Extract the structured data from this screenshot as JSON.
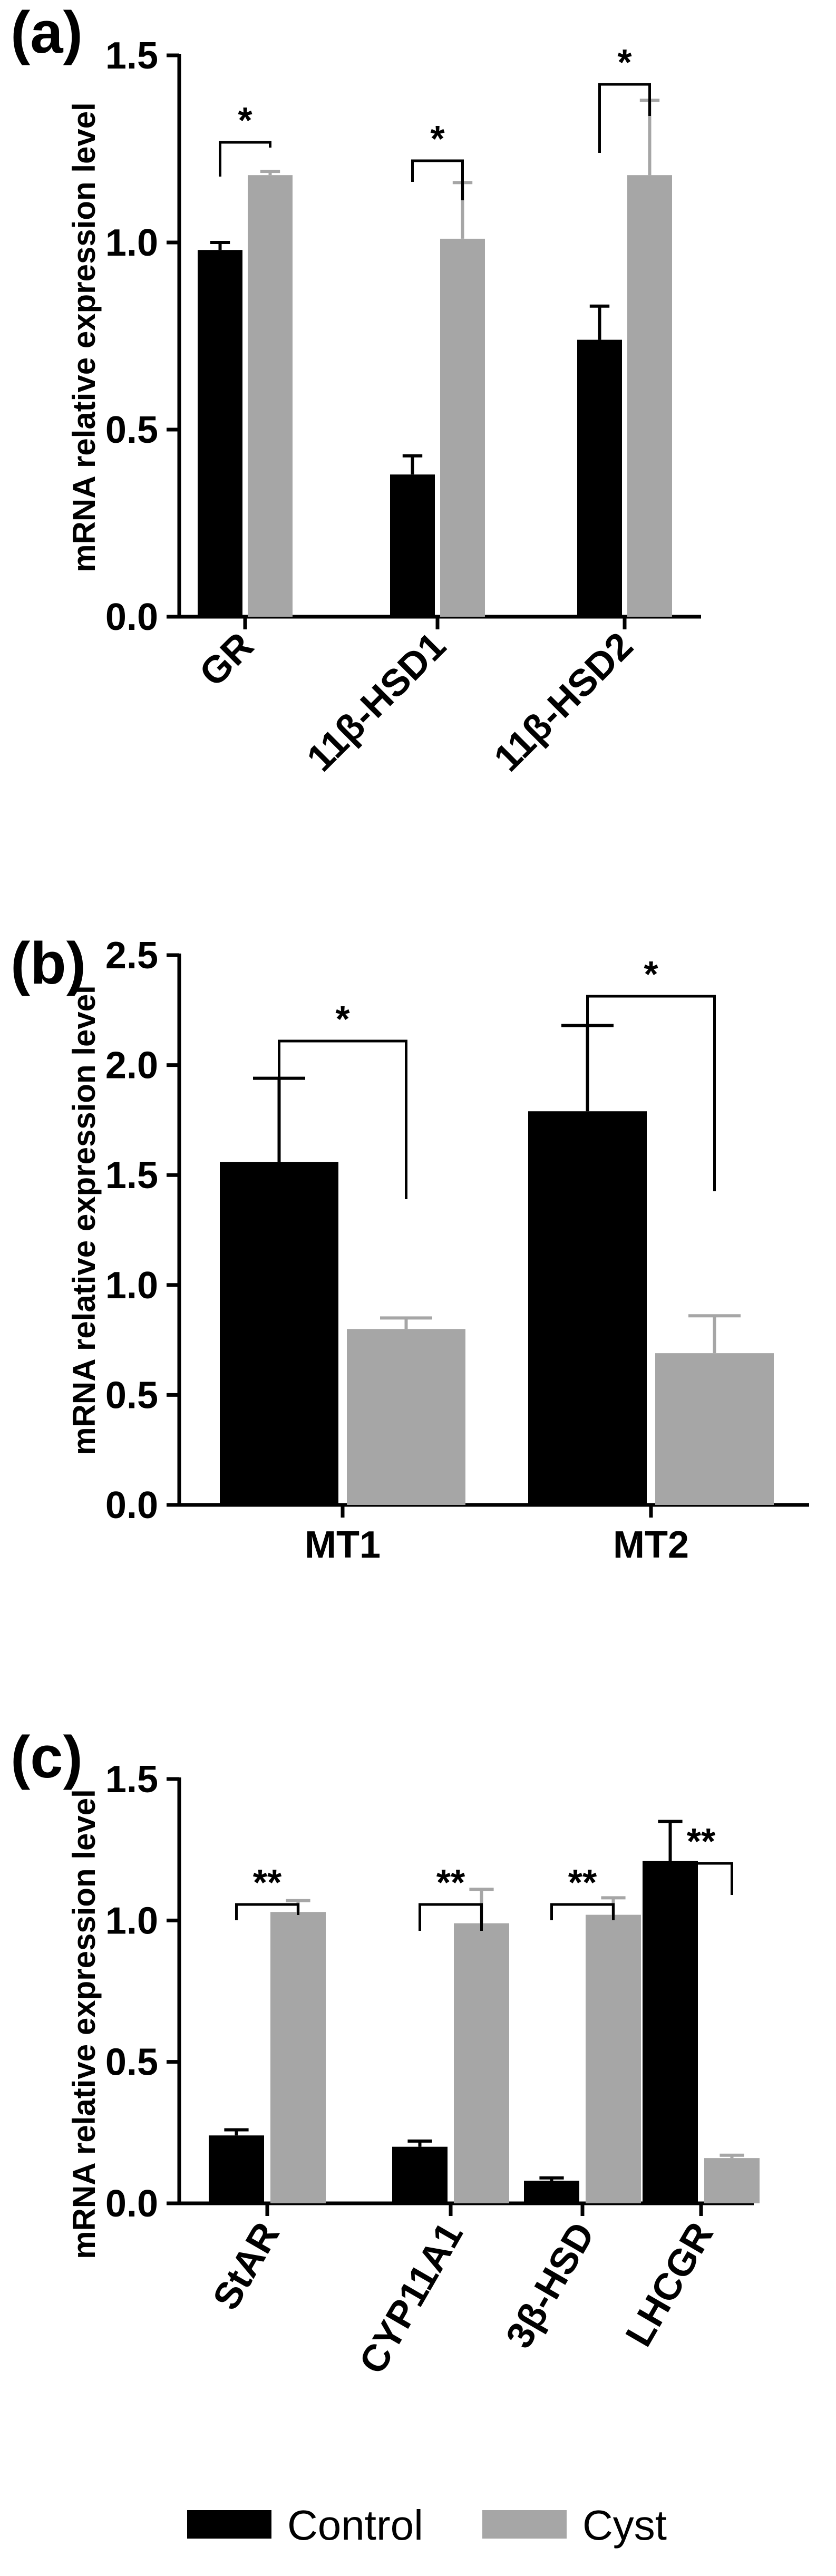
{
  "colors": {
    "control": "#000000",
    "cyst": "#a6a6a6",
    "axis": "#000000"
  },
  "chart_data": [
    {
      "type": "bar",
      "panel_label": "(a)",
      "ylabel": "mRNA relative expression level",
      "ylim": [
        0,
        1.5
      ],
      "yticks": [
        "0.0",
        "0.5",
        "1.0",
        "1.5"
      ],
      "categories": [
        "GR",
        "11β-HSD1",
        "11β-HSD2"
      ],
      "series": [
        {
          "name": "Control",
          "values": [
            0.98,
            0.38,
            0.74
          ],
          "errors": [
            0.02,
            0.05,
            0.09
          ]
        },
        {
          "name": "Cyst",
          "values": [
            1.18,
            1.01,
            1.18
          ],
          "errors": [
            0.01,
            0.15,
            0.2
          ]
        }
      ],
      "significance": [
        "*",
        "*",
        "*"
      ]
    },
    {
      "type": "bar",
      "panel_label": "(b)",
      "ylabel": "mRNA relative expression level",
      "ylim": [
        0,
        2.5
      ],
      "yticks": [
        "0.0",
        "0.5",
        "1.0",
        "1.5",
        "2.0",
        "2.5"
      ],
      "categories": [
        "MT1",
        "MT2"
      ],
      "series": [
        {
          "name": "Control",
          "values": [
            1.56,
            1.79
          ],
          "errors": [
            0.38,
            0.39
          ]
        },
        {
          "name": "Cyst",
          "values": [
            0.8,
            0.69
          ],
          "errors": [
            0.05,
            0.17
          ]
        }
      ],
      "significance": [
        "*",
        "*"
      ]
    },
    {
      "type": "bar",
      "panel_label": "(c)",
      "ylabel": "mRNA relative expression level",
      "ylim": [
        0,
        1.5
      ],
      "yticks": [
        "0.0",
        "0.5",
        "1.0",
        "1.5"
      ],
      "categories": [
        "StAR",
        "CYP11A1",
        "3β-HSD",
        "LHCGR"
      ],
      "series": [
        {
          "name": "Control",
          "values": [
            0.24,
            0.2,
            0.08,
            1.21
          ],
          "errors": [
            0.02,
            0.02,
            0.01,
            0.14
          ]
        },
        {
          "name": "Cyst",
          "values": [
            1.03,
            0.99,
            1.02,
            0.16
          ],
          "errors": [
            0.04,
            0.12,
            0.06,
            0.01
          ]
        }
      ],
      "significance": [
        "**",
        "**",
        "**",
        "**"
      ]
    }
  ],
  "legend": {
    "items": [
      {
        "label": "Control"
      },
      {
        "label": "Cyst"
      }
    ]
  }
}
